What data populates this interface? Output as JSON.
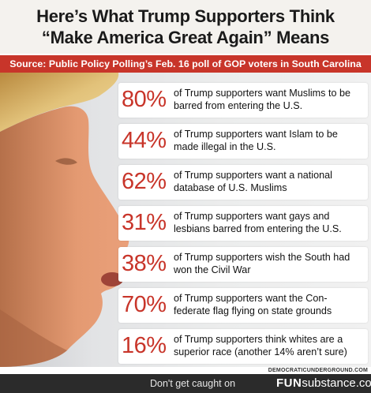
{
  "header": {
    "title_line1": "Here’s What Trump Supporters Think",
    "title_line2": "“Make America Great Again” Means",
    "source": "Source: Public Policy Polling’s Feb. 16 poll of GOP voters in South Carolina"
  },
  "stats": [
    {
      "percent": "80%",
      "line1": "of Trump supporters want Muslims to be",
      "line2": "barred from entering the U.S."
    },
    {
      "percent": "44%",
      "line1": "of Trump supporters want Islam to be",
      "line2": "made illegal in the U.S."
    },
    {
      "percent": "62%",
      "line1": "of Trump supporters want a national",
      "line2": "database of U.S. Muslims"
    },
    {
      "percent": "31%",
      "line1": "of Trump supporters want gays and",
      "line2": "lesbians barred from entering the U.S."
    },
    {
      "percent": "38%",
      "line1": "of Trump supporters wish the South had",
      "line2": "won the Civil War"
    },
    {
      "percent": "70%",
      "line1": "of Trump supporters want the Con-",
      "line2": "federate flag flying on state grounds"
    },
    {
      "percent": "16%",
      "line1": "of Trump supporters think whites are a",
      "line2": "superior race (another 14% aren’t sure)"
    }
  ],
  "credit": "DEMOCRATICUNDERGROUND.COM",
  "footer": {
    "tagline": "Don't get caught on",
    "brand_bold": "FUN",
    "brand_rest": "substance.com"
  },
  "colors": {
    "accent": "#c8352a",
    "footer_bg": "#2b2b2b"
  }
}
